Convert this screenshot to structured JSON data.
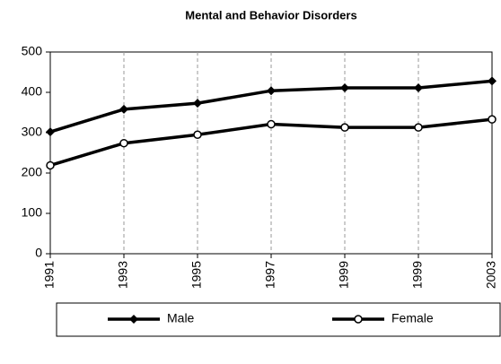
{
  "chart_data": {
    "type": "line",
    "title": "Mental and Behavior Disorders",
    "categories": [
      "1991",
      "1993",
      "1995",
      "1997",
      "1999",
      "1999",
      "2003"
    ],
    "series": [
      {
        "name": "Male",
        "color": "#000000",
        "marker": "diamond",
        "values": [
          302,
          358,
          373,
          404,
          411,
          411,
          428
        ]
      },
      {
        "name": "Female",
        "color": "#000000",
        "marker": "circle",
        "values": [
          219,
          274,
          295,
          321,
          313,
          313,
          333
        ]
      }
    ],
    "ylim": [
      0,
      500
    ],
    "yticks": [
      0,
      100,
      200,
      300,
      400,
      500
    ],
    "xgrid": true
  }
}
